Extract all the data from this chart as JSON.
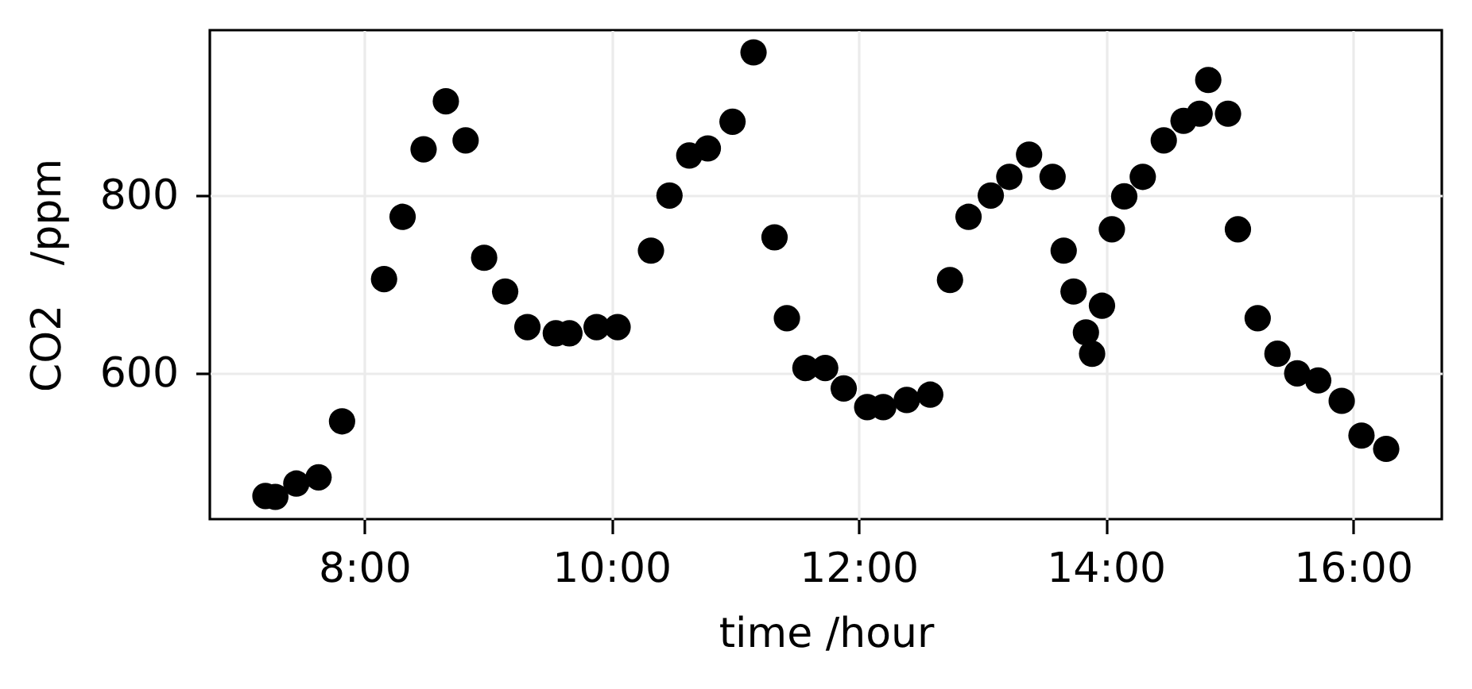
{
  "chart_data": {
    "type": "scatter",
    "xlabel": "time /hour",
    "ylabel": "CO2   /ppm",
    "x": [
      7.2,
      7.28,
      7.45,
      7.63,
      7.82,
      8.16,
      8.31,
      8.48,
      8.66,
      8.82,
      8.97,
      9.14,
      9.32,
      9.55,
      9.66,
      9.88,
      10.05,
      10.32,
      10.47,
      10.63,
      10.78,
      10.98,
      11.15,
      11.32,
      11.42,
      11.57,
      11.73,
      11.88,
      12.07,
      12.2,
      12.39,
      12.58,
      12.74,
      12.89,
      13.07,
      13.22,
      13.38,
      13.57,
      13.66,
      13.74,
      13.84,
      13.89,
      13.97,
      14.05,
      14.15,
      14.3,
      14.47,
      14.63,
      14.76,
      14.83,
      14.99,
      15.07,
      15.23,
      15.39,
      15.55,
      15.72,
      15.91,
      16.07,
      16.27
    ],
    "values": [
      462,
      461,
      476,
      483,
      546,
      706,
      776,
      852,
      906,
      862,
      730,
      692,
      652,
      645,
      645,
      652,
      652,
      738,
      800,
      845,
      853,
      883,
      961,
      753,
      662,
      606,
      606,
      583,
      562,
      562,
      570,
      576,
      705,
      776,
      800,
      821,
      846,
      821,
      738,
      692,
      646,
      622,
      676,
      762,
      799,
      821,
      862,
      884,
      892,
      930,
      892,
      762,
      662,
      622,
      600,
      592,
      569,
      530,
      515
    ],
    "color": "#000000",
    "marker": "circle",
    "xlim": [
      6.75,
      16.72
    ],
    "ylim": [
      436,
      986
    ],
    "xticks": [
      {
        "value": 8,
        "label": "8:00"
      },
      {
        "value": 10,
        "label": "10:00"
      },
      {
        "value": 12,
        "label": "12:00"
      },
      {
        "value": 14,
        "label": "14:00"
      },
      {
        "value": 16,
        "label": "16:00"
      }
    ],
    "yticks": [
      600,
      800
    ],
    "grid": true
  }
}
